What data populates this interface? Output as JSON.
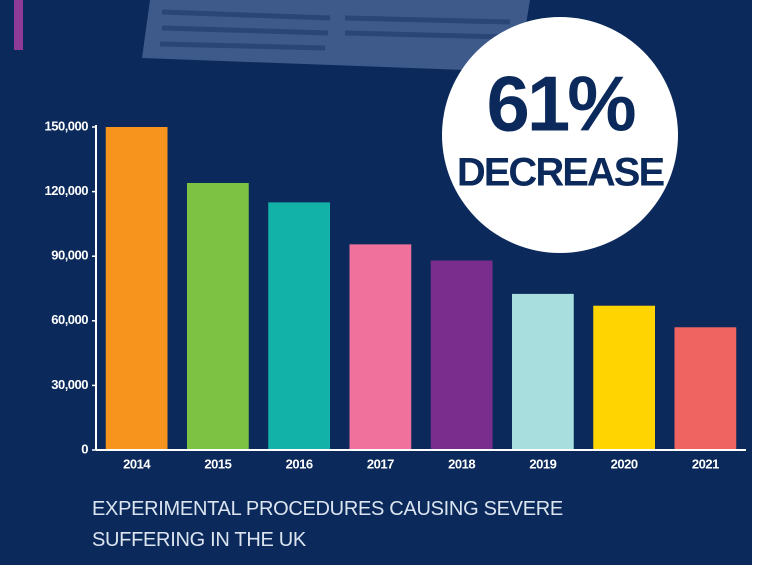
{
  "chart_data": {
    "type": "bar",
    "title": "EXPERIMENTAL PROCEDURES CAUSING SEVERE SUFFERING IN THE UK",
    "annotations": [
      "61%",
      "DECREASE"
    ],
    "categories": [
      "2014",
      "2015",
      "2016",
      "2017",
      "2018",
      "2019",
      "2020",
      "2021"
    ],
    "values": [
      150000,
      124000,
      115000,
      95500,
      88000,
      72500,
      67000,
      57000
    ],
    "colors": [
      "#f7941d",
      "#7dc242",
      "#12b2a8",
      "#f0719b",
      "#7b2d8e",
      "#a8dede",
      "#ffd400",
      "#ef6461"
    ],
    "ylim": [
      0,
      150000
    ],
    "yticks": [
      0,
      {
        "value": 30000,
        "label": "30,000"
      },
      {
        "value": 60000,
        "label": "60,000"
      },
      {
        "value": 90000,
        "label": "90,000"
      },
      {
        "value": 120000,
        "label": "120,000"
      },
      {
        "value": 150000,
        "label": "150,000"
      }
    ],
    "grid": false
  }
}
